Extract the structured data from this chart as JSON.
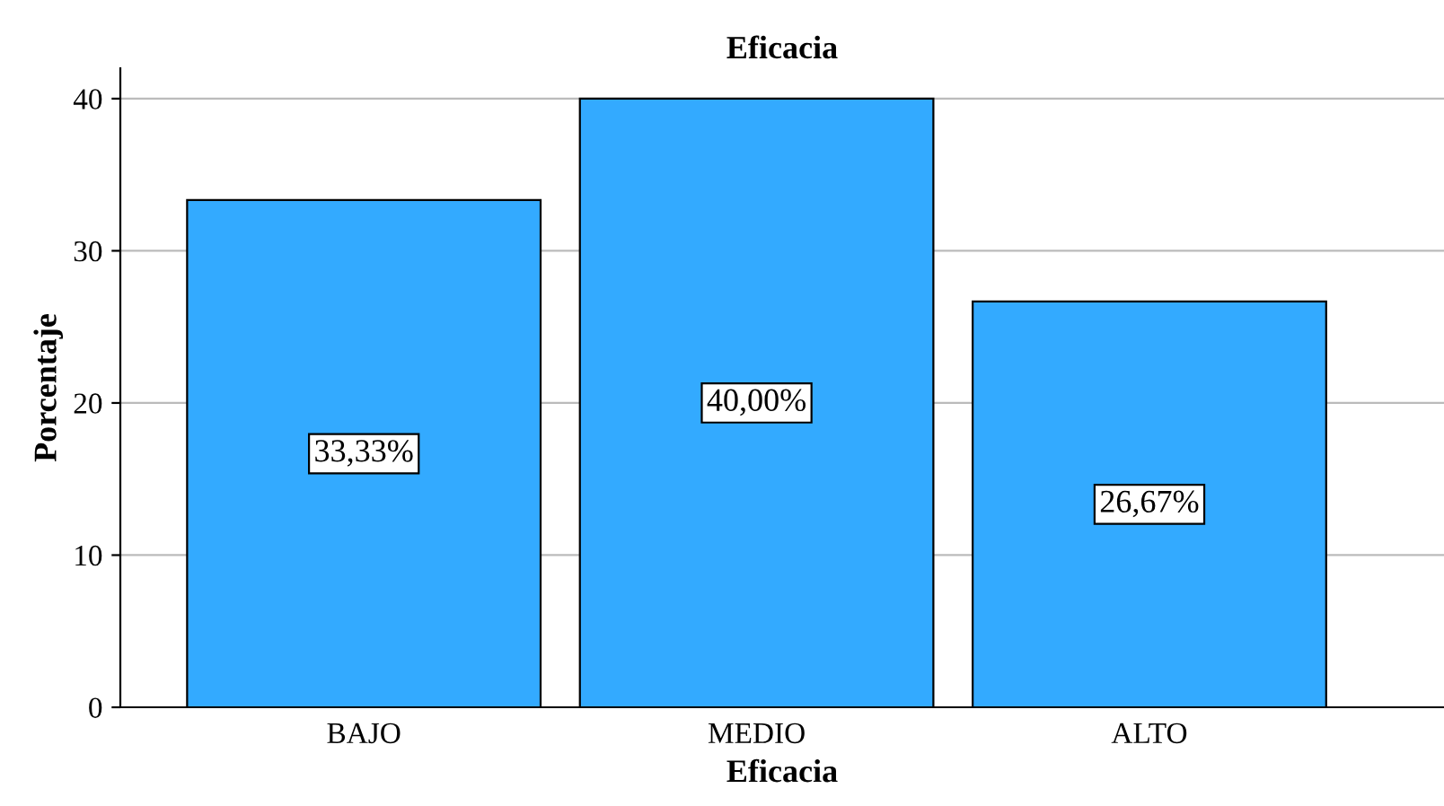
{
  "chart_data": {
    "type": "bar",
    "title": "Eficacia",
    "xlabel": "Eficacia",
    "ylabel": "Porcentaje",
    "categories": [
      "BAJO",
      "MEDIO",
      "ALTO"
    ],
    "values": [
      33.33,
      40.0,
      26.67
    ],
    "value_labels": [
      "33,33%",
      "40,00%",
      "26,67%"
    ],
    "color": "#33aaff",
    "ylim": [
      0,
      42
    ],
    "yticks": [
      0,
      10,
      20,
      30,
      40
    ],
    "grid": "y"
  }
}
